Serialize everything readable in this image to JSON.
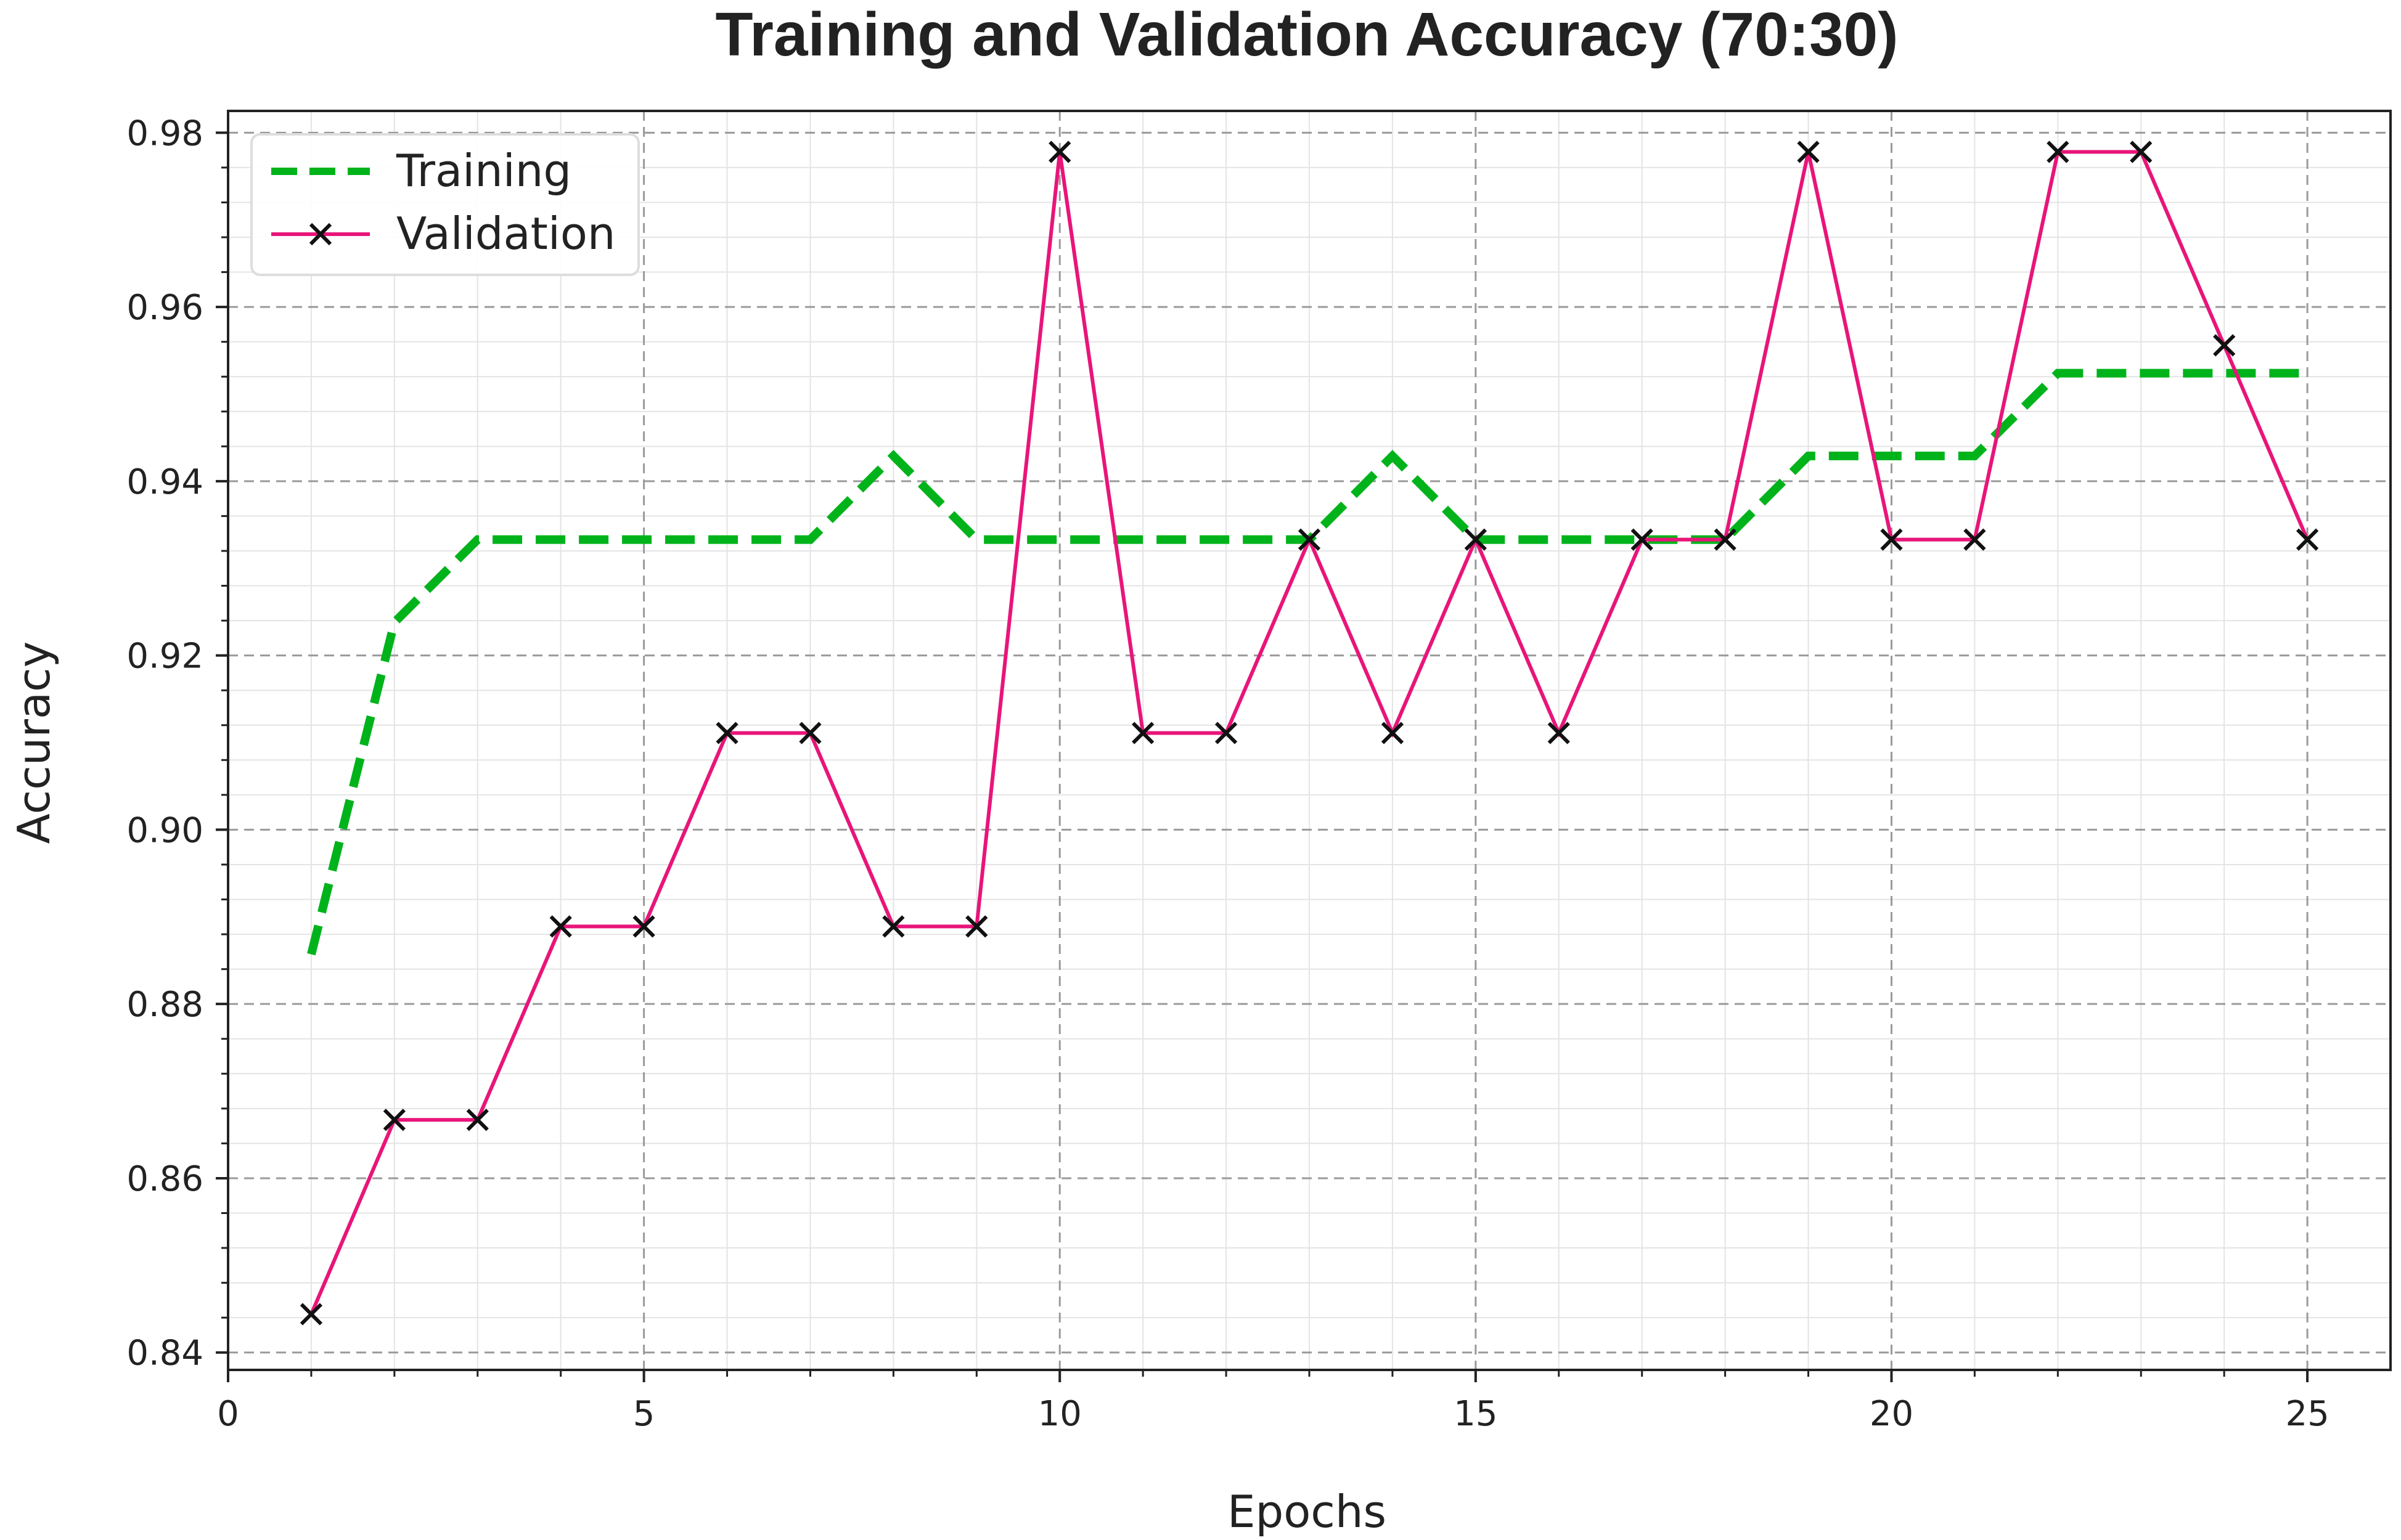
{
  "chart_data": {
    "type": "line",
    "title": "Training and Validation Accuracy (70:30)",
    "xlabel": "Epochs",
    "ylabel": "Accuracy",
    "xlim": [
      0,
      26
    ],
    "ylim": [
      0.838,
      0.9825
    ],
    "x_ticks": [
      0,
      5,
      10,
      15,
      20,
      25
    ],
    "y_ticks": [
      0.84,
      0.86,
      0.88,
      0.9,
      0.92,
      0.94,
      0.96,
      0.98
    ],
    "x_tick_labels": [
      "0",
      "5",
      "10",
      "15",
      "20",
      "25"
    ],
    "y_tick_labels": [
      "0.84",
      "0.86",
      "0.88",
      "0.90",
      "0.92",
      "0.94",
      "0.96",
      "0.98"
    ],
    "grid": true,
    "minor_grid": true,
    "legend_position": "top-left",
    "x": [
      1,
      2,
      3,
      4,
      5,
      6,
      7,
      8,
      9,
      10,
      11,
      12,
      13,
      14,
      15,
      16,
      17,
      18,
      19,
      20,
      21,
      22,
      23,
      24,
      25
    ],
    "series": [
      {
        "name": "Training",
        "style": "dashed",
        "marker": "none",
        "color": "#00b31b",
        "values": [
          0.8857,
          0.9238,
          0.9333,
          0.9333,
          0.9333,
          0.9333,
          0.9333,
          0.9429,
          0.9333,
          0.9333,
          0.9333,
          0.9333,
          0.9333,
          0.9429,
          0.9333,
          0.9333,
          0.9333,
          0.9333,
          0.9429,
          0.9429,
          0.9429,
          0.9524,
          0.9524,
          0.9524,
          0.9524
        ]
      },
      {
        "name": "Validation",
        "style": "solid",
        "marker": "x",
        "color": "#e8157a",
        "values": [
          0.8444,
          0.8667,
          0.8667,
          0.8889,
          0.8889,
          0.9111,
          0.9111,
          0.8889,
          0.8889,
          0.9778,
          0.9111,
          0.9111,
          0.9333,
          0.9111,
          0.9333,
          0.9111,
          0.9333,
          0.9333,
          0.9778,
          0.9333,
          0.9333,
          0.9778,
          0.9778,
          0.9556,
          0.9333
        ]
      }
    ]
  }
}
